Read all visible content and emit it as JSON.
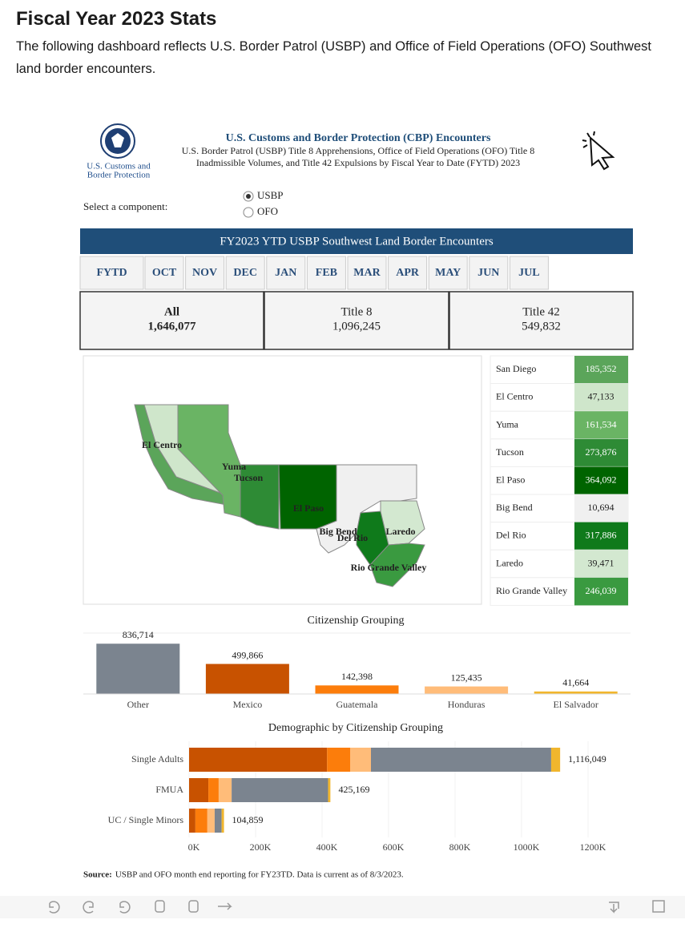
{
  "header": {
    "title": "Fiscal Year 2023 Stats",
    "description": "The following dashboard reflects U.S. Border Patrol (USBP) and Office of Field Operations (OFO) Southwest land border encounters."
  },
  "dashboard": {
    "logo_text": [
      "U.S. Customs and",
      "Border Protection"
    ],
    "title": "U.S. Customs and Border Protection (CBP) Encounters",
    "subtitle": [
      "U.S. Border Patrol (USBP) Title 8 Apprehensions, Office of Field Operations (OFO) Title 8",
      "Inadmissible Volumes, and Title 42 Expulsions by Fiscal Year to Date (FYTD) 2023"
    ],
    "component_label": "Select a component:",
    "components": [
      "USBP",
      "OFO"
    ],
    "selected_component": 0,
    "banner": "FY2023 YTD USBP Southwest Land Border Encounters",
    "tabs": [
      "FYTD",
      "OCT",
      "NOV",
      "DEC",
      "JAN",
      "FEB",
      "MAR",
      "APR",
      "MAY",
      "JUN",
      "JUL"
    ],
    "totals": [
      {
        "label": "All",
        "value": "1,646,077"
      },
      {
        "label": "Title 8",
        "value": "1,096,245"
      },
      {
        "label": "Title 42",
        "value": "549,832"
      }
    ],
    "sectors": [
      {
        "name": "San Diego",
        "value": "185,352",
        "color": "#5ba55a"
      },
      {
        "name": "El Centro",
        "value": "47,133",
        "color": "#cfe6cb"
      },
      {
        "name": "Yuma",
        "value": "161,534",
        "color": "#6ab464"
      },
      {
        "name": "Tucson",
        "value": "273,876",
        "color": "#2e8b35"
      },
      {
        "name": "El Paso",
        "value": "364,092",
        "color": "#006400"
      },
      {
        "name": "Big Bend",
        "value": "10,694",
        "color": "#f0f0f0"
      },
      {
        "name": "Del Rio",
        "value": "317,886",
        "color": "#0f7a1b"
      },
      {
        "name": "Laredo",
        "value": "39,471",
        "color": "#d3e8d0"
      },
      {
        "name": "Rio Grande Valley",
        "value": "246,039",
        "color": "#3a9a40"
      }
    ]
  },
  "chart_data": [
    {
      "type": "bar",
      "title": "Citizenship Grouping",
      "categories": [
        "Other",
        "Mexico",
        "Guatemala",
        "Honduras",
        "El Salvador"
      ],
      "values": [
        836714,
        499866,
        142398,
        125435,
        41664
      ],
      "value_labels": [
        "836,714",
        "499,866",
        "142,398",
        "125,435",
        "41,664"
      ],
      "colors": [
        "#7b848f",
        "#c85200",
        "#fc7d0b",
        "#ffbc79",
        "#f1b62d"
      ],
      "ylim": [
        0,
        840000
      ]
    },
    {
      "type": "stacked_hbar",
      "title": "Demographic by Citizenship Grouping",
      "categories": [
        "Single Adults",
        "FMUA",
        "UC / Single Minors"
      ],
      "series": [
        {
          "color": "#c85200",
          "values": [
            415000,
            58000,
            19000
          ]
        },
        {
          "color": "#fc7d0b",
          "values": [
            70000,
            31000,
            36000
          ]
        },
        {
          "color": "#ffbc79",
          "values": [
            62000,
            39000,
            22000
          ]
        },
        {
          "color": "#7b848f",
          "values": [
            542000,
            290000,
            21000
          ]
        },
        {
          "color": "#f1b62d",
          "values": [
            27000,
            7000,
            7000
          ]
        }
      ],
      "totals": [
        1116049,
        425169,
        104859
      ],
      "total_labels": [
        "1,116,049",
        "425,169",
        "104,859"
      ],
      "xlim": [
        0,
        1200000
      ],
      "xticks": [
        {
          "value": 0,
          "label": "0K"
        },
        {
          "value": 200000,
          "label": "200K"
        },
        {
          "value": 400000,
          "label": "400K"
        },
        {
          "value": 600000,
          "label": "600K"
        },
        {
          "value": 800000,
          "label": "800K"
        },
        {
          "value": 1000000,
          "label": "1000K"
        },
        {
          "value": 1200000,
          "label": "1200K"
        }
      ]
    }
  ],
  "source": {
    "label": "Source:",
    "text": "USBP and OFO month end reporting for FY23TD. Data is current as of 8/3/2023."
  }
}
